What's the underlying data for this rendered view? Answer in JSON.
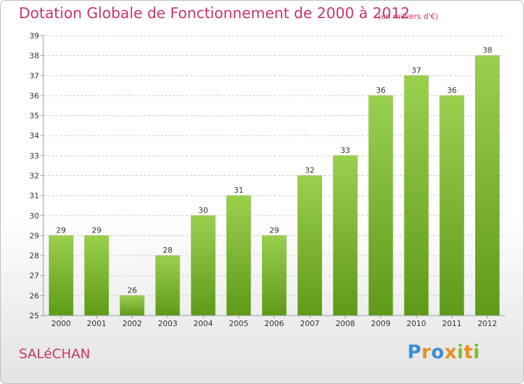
{
  "header": {
    "title": "Dotation Globale de Fonctionnement de 2000 à 2012",
    "unit": "(en milliers d'€)"
  },
  "footer": {
    "city": "SALéCHAN",
    "logo_letters": [
      {
        "char": "P",
        "color": "#3a8fd6"
      },
      {
        "char": "r",
        "color": "#e8901e"
      },
      {
        "char": "o",
        "color": "#3a8fd6"
      },
      {
        "char": "x",
        "color": "#e8901e"
      },
      {
        "char": "i",
        "color": "#7cbf2b"
      },
      {
        "char": "t",
        "color": "#e8901e"
      },
      {
        "char": "i",
        "color": "#7cbf2b"
      }
    ]
  },
  "chart_data": {
    "type": "bar",
    "title": "Dotation Globale de Fonctionnement de 2000 à 2012",
    "subtitle": "(en milliers d'€)",
    "categories": [
      "2000",
      "2001",
      "2002",
      "2003",
      "2004",
      "2005",
      "2006",
      "2007",
      "2008",
      "2009",
      "2010",
      "2011",
      "2012"
    ],
    "values": [
      29,
      29,
      26,
      28,
      30,
      31,
      29,
      32,
      33,
      36,
      37,
      36,
      38
    ],
    "data_labels": [
      "29",
      "29",
      "26",
      "28",
      "30",
      "31",
      "29",
      "32",
      "33",
      "36",
      "37",
      "36",
      "38"
    ],
    "xlabel": "",
    "ylabel": "",
    "ylim": [
      25,
      39
    ],
    "yticks": [
      "25",
      "26",
      "27",
      "28",
      "29",
      "30",
      "31",
      "32",
      "33",
      "34",
      "35",
      "36",
      "37",
      "38",
      "39"
    ],
    "grid": "horizontal-dashed",
    "bar_color_top": "#9bd04f",
    "bar_color_bottom": "#5e9a18"
  }
}
